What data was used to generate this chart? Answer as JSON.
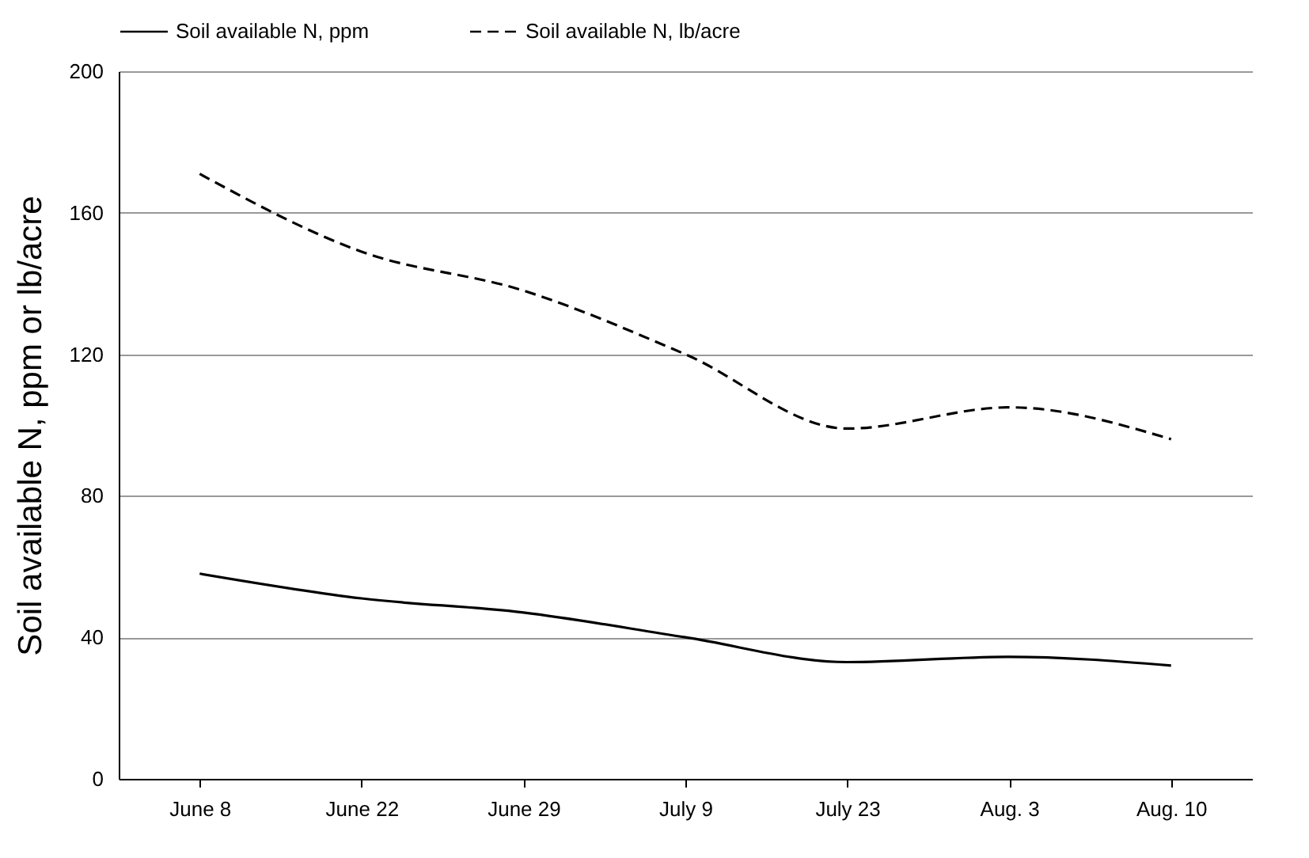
{
  "chart_data": {
    "type": "line",
    "ylabel": "Soil available N, ppm or lb/acre",
    "categories": [
      "June 8",
      "June 22",
      "June 29",
      "July 9",
      "July 23",
      "Aug. 3",
      "Aug. 10"
    ],
    "series": [
      {
        "name": "Soil available N, ppm",
        "color": "#000000",
        "line_style": "solid",
        "values": [
          58,
          51,
          47,
          40,
          33,
          34.5,
          32
        ]
      },
      {
        "name": "Soil available N, lb/acre",
        "color": "#000000",
        "line_style": "dashed",
        "values": [
          171,
          149,
          138,
          120,
          99,
          105,
          96
        ]
      }
    ],
    "ylim": [
      0,
      200
    ],
    "yticks": [
      0,
      40,
      80,
      120,
      160,
      200
    ],
    "grid": "y",
    "legend": "top",
    "marker": "none"
  }
}
